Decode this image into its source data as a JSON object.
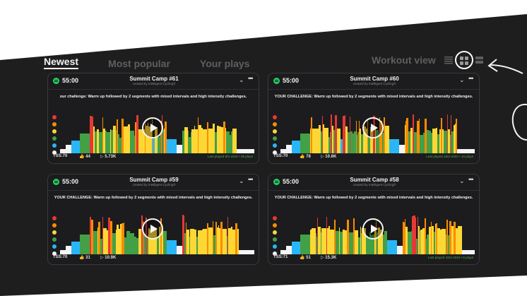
{
  "nav": {
    "tabs": [
      {
        "label": "Newest",
        "active": true
      },
      {
        "label": "Most popular",
        "active": false
      },
      {
        "label": "Your plays",
        "active": false
      }
    ],
    "workout_view_label": "Workout view",
    "view_icons": [
      "list-view-icon",
      "grid-view-icon",
      "compact-view-icon"
    ],
    "selected_view": "grid-view-icon"
  },
  "zone_colors": [
    "#e53935",
    "#fb8c00",
    "#fdd835",
    "#43a047",
    "#29b6f6",
    "#f5f5f5"
  ],
  "cards": [
    {
      "duration": "55:00",
      "title": "Summit Camp #61",
      "created_by": "created by Intelligent Cycling®",
      "challenge": "our challenge: Warm up followed by 2 segments with mixed intervals and high intensity challenges.",
      "tss": "TSS:70",
      "likes": "44",
      "plays": "5.73K",
      "last_played": "Last played 9/2-2024 • 28 plays"
    },
    {
      "duration": "55:00",
      "title": "Summit Camp #60",
      "created_by": "created by Intelligent Cycling®",
      "challenge": "YOUR CHALLENGE: Warm up followed by 2 segments with mixed intervals and high intensity challenges.",
      "tss": "TSS:70",
      "likes": "78",
      "plays": "10.6K",
      "last_played": "Last played 18/2-2024 • 16 plays"
    },
    {
      "duration": "55:00",
      "title": "Summit Camp #59",
      "created_by": "created by Intelligent Cycling®",
      "challenge": "YOUR CHALLENGE: Warm up followed by 2 segments with mixed intervals and high intensity challenges.",
      "tss": "TSS:70",
      "likes": "31",
      "plays": "10.9K",
      "last_played": ""
    },
    {
      "duration": "55:00",
      "title": "Summit Camp #58",
      "created_by": "created by Intelligent Cycling®",
      "challenge": "YOUR CHALLENGE: Warm up followed by 2 segments with mixed intervals and high intensity challenges.",
      "tss": "TSS:71",
      "likes": "51",
      "plays": "15.3K",
      "last_played": "Last played 18/1-2022 • 6 plays"
    }
  ]
}
